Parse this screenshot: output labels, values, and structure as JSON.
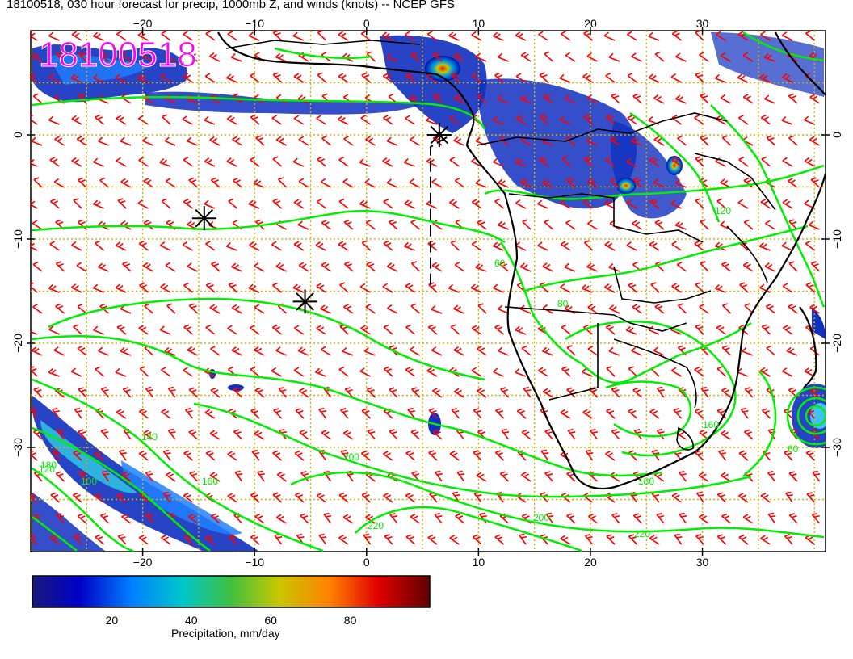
{
  "title": "18100518, 030 hour forecast for precip, 1000mb Z, and winds (knots) -- NCEP GFS",
  "stamp": "18100518",
  "colors": {
    "wind_barbs": "#ff0000",
    "contours": "#00ee00",
    "grid": "#d4b000",
    "coast": "#000000",
    "stamp": "#ff00ff"
  },
  "map": {
    "lon_range": [
      -30,
      41
    ],
    "lat_range": [
      -40,
      10
    ],
    "lon_ticks": [
      "−20",
      "−10",
      "0",
      "10",
      "20",
      "30"
    ],
    "lat_ticks": [
      "0",
      "−10",
      "−20",
      "−30"
    ],
    "lon_values": [
      -20,
      -10,
      0,
      10,
      20,
      30
    ],
    "lat_values": [
      0,
      -10,
      -20,
      -30
    ]
  },
  "contour_labels": [
    "120",
    "100",
    "140",
    "160",
    "200",
    "220",
    "180",
    "60",
    "80",
    "120",
    "160",
    "180",
    "200",
    "220",
    "60"
  ],
  "markers": [
    {
      "icon": "asterisk-icon",
      "lon": -14.5,
      "lat": -8.0
    },
    {
      "icon": "asterisk-icon",
      "lon": -5.5,
      "lat": -16.0
    },
    {
      "icon": "asterisk-icon",
      "lon": 6.5,
      "lat": 0.0
    }
  ],
  "colorbar": {
    "label": "Precipitation, mm/day",
    "ticks": [
      "20",
      "40",
      "60",
      "80"
    ],
    "tick_values": [
      20,
      40,
      60,
      80
    ],
    "range": [
      0,
      100
    ]
  }
}
